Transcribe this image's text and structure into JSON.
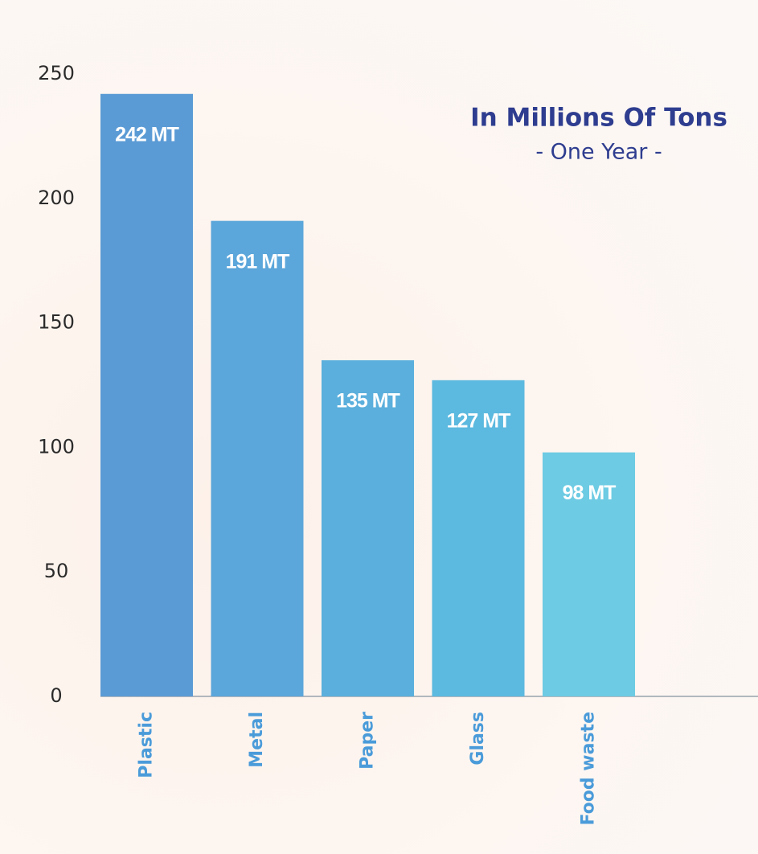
{
  "chart_data": {
    "type": "bar",
    "title": "In Millions Of Tons",
    "subtitle": "- One Year -",
    "categories": [
      "Plastic",
      "Metal",
      "Paper",
      "Glass",
      "Food waste"
    ],
    "values": [
      242,
      191,
      135,
      127,
      98
    ],
    "value_labels": [
      "242 MT",
      "191 MT",
      "135 MT",
      "127 MT",
      "98 MT"
    ],
    "colors": [
      "#5b9bd5",
      "#5ba6da",
      "#5aafdc",
      "#5cb9df",
      "#6dcbe3"
    ],
    "ylim": [
      0,
      250
    ],
    "yticks": [
      0,
      50,
      100,
      150,
      200,
      250
    ],
    "grid": false
  }
}
